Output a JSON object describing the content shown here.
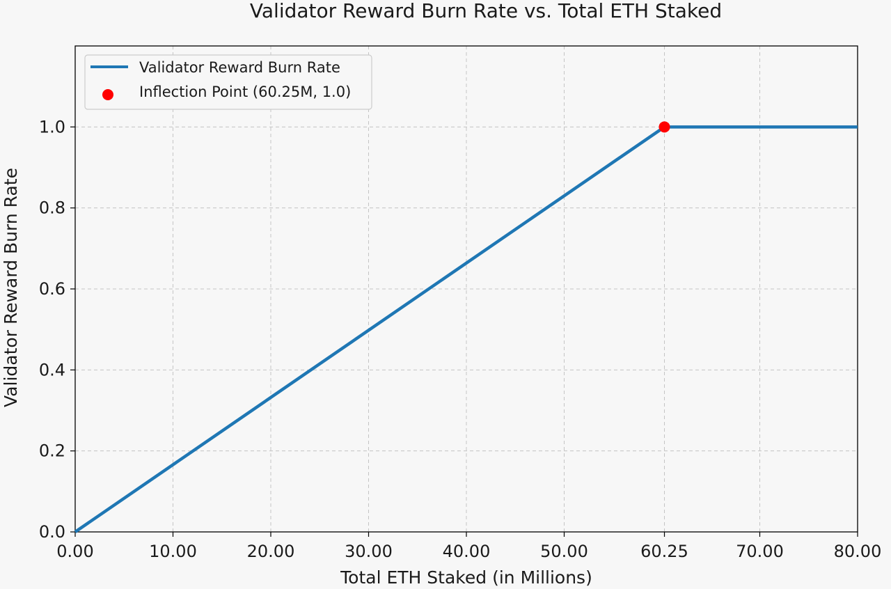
{
  "chart_data": {
    "type": "line",
    "title": "Validator Reward Burn Rate vs. Total ETH Staked",
    "xlabel": "Total ETH Staked (in Millions)",
    "ylabel": "Validator Reward Burn Rate",
    "xlim": [
      0,
      80
    ],
    "ylim": [
      0,
      1.2
    ],
    "x_ticks": [
      0,
      10,
      20,
      30,
      40,
      50,
      60.25,
      70,
      80
    ],
    "x_tick_labels": [
      "0.00",
      "10.00",
      "20.00",
      "30.00",
      "40.00",
      "50.00",
      "60.25",
      "70.00",
      "80.00"
    ],
    "y_ticks": [
      0,
      0.2,
      0.4,
      0.6,
      0.8,
      1.0
    ],
    "y_tick_labels": [
      "0.0",
      "0.2",
      "0.4",
      "0.6",
      "0.8",
      "1.0"
    ],
    "grid": true,
    "legend_position": "top-left",
    "series": [
      {
        "name": "Validator Reward Burn Rate",
        "type": "line",
        "color": "#1f77b4",
        "x": [
          0,
          60.25,
          80
        ],
        "y": [
          0,
          1.0,
          1.0
        ]
      },
      {
        "name": "Inflection Point (60.25M, 1.0)",
        "type": "scatter",
        "color": "#ff0000",
        "x": [
          60.25
        ],
        "y": [
          1.0
        ]
      }
    ]
  }
}
